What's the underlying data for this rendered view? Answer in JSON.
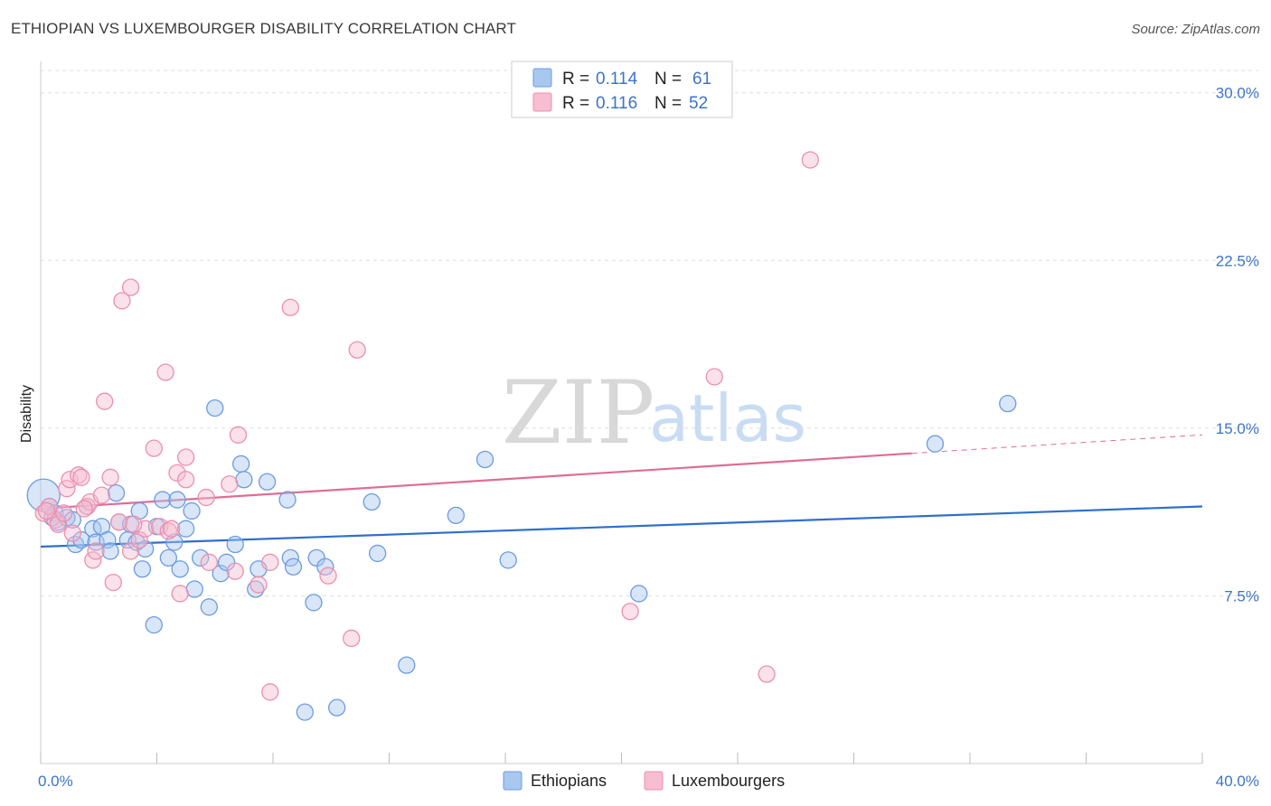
{
  "header": {
    "title": "ETHIOPIAN VS LUXEMBOURGER DISABILITY CORRELATION CHART",
    "source": "Source: ZipAtlas.com"
  },
  "watermark": {
    "zip": "ZIP",
    "atlas": "atlas"
  },
  "legend": {
    "rows": [
      {
        "r_label": "R = ",
        "r_value": "0.114",
        "n_label": "N = ",
        "n_value": "61",
        "color": "#a9c8f0",
        "stroke": "#6d9be0"
      },
      {
        "r_label": "R = ",
        "r_value": "0.116",
        "n_label": "N = ",
        "n_value": "52",
        "color": "#f7bdd0",
        "stroke": "#ec8fae"
      }
    ]
  },
  "chart_data": {
    "type": "scatter",
    "title": "ETHIOPIAN VS LUXEMBOURGER DISABILITY CORRELATION CHART",
    "xlabel": "",
    "ylabel": "Disability",
    "xlim": [
      0,
      40
    ],
    "ylim": [
      0,
      31
    ],
    "x_tick_labels": [
      "0.0%",
      "40.0%"
    ],
    "y_ticks": [
      7.5,
      15.0,
      22.5,
      30.0
    ],
    "y_tick_labels": [
      "7.5%",
      "15.0%",
      "22.5%",
      "30.0%"
    ],
    "grid": true,
    "series": [
      {
        "name": "Ethiopians",
        "color": "#6d9be0",
        "fill": "#a9c8f0",
        "trend_color": "#2e6fcc",
        "trend": {
          "x0": 0,
          "y0": 9.7,
          "x1": 40,
          "y1": 11.5,
          "solid_to": 40
        },
        "points": [
          [
            0.1,
            12.0
          ],
          [
            0.3,
            11.5
          ],
          [
            0.5,
            11.2
          ],
          [
            0.6,
            10.8
          ],
          [
            0.9,
            11.0
          ],
          [
            1.1,
            10.9
          ],
          [
            1.2,
            9.8
          ],
          [
            1.4,
            10.0
          ],
          [
            1.6,
            11.5
          ],
          [
            1.8,
            10.5
          ],
          [
            1.9,
            9.9
          ],
          [
            2.1,
            10.6
          ],
          [
            2.3,
            10.0
          ],
          [
            2.4,
            9.5
          ],
          [
            2.6,
            12.1
          ],
          [
            2.7,
            10.8
          ],
          [
            3.0,
            10.0
          ],
          [
            3.1,
            10.7
          ],
          [
            3.3,
            9.9
          ],
          [
            3.4,
            11.3
          ],
          [
            3.5,
            8.7
          ],
          [
            3.6,
            9.6
          ],
          [
            3.9,
            6.2
          ],
          [
            4.0,
            10.6
          ],
          [
            4.2,
            11.8
          ],
          [
            4.4,
            9.2
          ],
          [
            4.6,
            9.9
          ],
          [
            4.7,
            11.8
          ],
          [
            4.8,
            8.7
          ],
          [
            5.0,
            10.5
          ],
          [
            5.2,
            11.3
          ],
          [
            5.3,
            7.8
          ],
          [
            5.5,
            9.2
          ],
          [
            5.8,
            7.0
          ],
          [
            6.0,
            15.9
          ],
          [
            6.2,
            8.5
          ],
          [
            6.4,
            9.0
          ],
          [
            6.7,
            9.8
          ],
          [
            6.9,
            13.4
          ],
          [
            7.0,
            12.7
          ],
          [
            7.4,
            7.8
          ],
          [
            7.5,
            8.7
          ],
          [
            7.8,
            12.6
          ],
          [
            8.5,
            11.8
          ],
          [
            8.6,
            9.2
          ],
          [
            8.7,
            8.8
          ],
          [
            9.1,
            2.3
          ],
          [
            9.4,
            7.2
          ],
          [
            9.5,
            9.2
          ],
          [
            9.8,
            8.8
          ],
          [
            10.2,
            2.5
          ],
          [
            11.4,
            11.7
          ],
          [
            11.6,
            9.4
          ],
          [
            12.6,
            4.4
          ],
          [
            14.3,
            11.1
          ],
          [
            15.3,
            13.6
          ],
          [
            16.1,
            9.1
          ],
          [
            20.6,
            7.6
          ],
          [
            30.8,
            14.3
          ],
          [
            33.3,
            16.1
          ],
          [
            0.4,
            11.0
          ]
        ]
      },
      {
        "name": "Luxembourgers",
        "color": "#ec8fae",
        "fill": "#f7bdd0",
        "trend_color": "#e06c96",
        "trend": {
          "x0": 0,
          "y0": 11.4,
          "x1": 40,
          "y1": 14.7,
          "solid_to": 30.0
        },
        "points": [
          [
            0.1,
            11.2
          ],
          [
            0.3,
            11.5
          ],
          [
            0.5,
            10.9
          ],
          [
            0.6,
            10.7
          ],
          [
            0.8,
            11.2
          ],
          [
            0.9,
            12.3
          ],
          [
            1.0,
            12.7
          ],
          [
            1.1,
            10.3
          ],
          [
            1.3,
            12.9
          ],
          [
            1.4,
            12.8
          ],
          [
            1.6,
            11.5
          ],
          [
            1.7,
            11.7
          ],
          [
            1.8,
            9.1
          ],
          [
            1.9,
            9.5
          ],
          [
            2.1,
            12.0
          ],
          [
            2.2,
            16.2
          ],
          [
            2.4,
            12.8
          ],
          [
            2.5,
            8.1
          ],
          [
            2.7,
            10.8
          ],
          [
            2.8,
            20.7
          ],
          [
            3.1,
            9.5
          ],
          [
            3.1,
            21.3
          ],
          [
            3.4,
            10.0
          ],
          [
            3.6,
            10.5
          ],
          [
            3.9,
            14.1
          ],
          [
            4.1,
            10.6
          ],
          [
            4.3,
            17.5
          ],
          [
            4.4,
            10.4
          ],
          [
            4.7,
            13.0
          ],
          [
            4.8,
            7.6
          ],
          [
            5.0,
            12.7
          ],
          [
            5.0,
            13.7
          ],
          [
            5.7,
            11.9
          ],
          [
            5.8,
            9.0
          ],
          [
            6.5,
            12.5
          ],
          [
            6.7,
            8.6
          ],
          [
            6.8,
            14.7
          ],
          [
            7.5,
            8.0
          ],
          [
            7.9,
            9.0
          ],
          [
            8.6,
            20.4
          ],
          [
            9.9,
            8.4
          ],
          [
            10.9,
            18.5
          ],
          [
            10.7,
            5.6
          ],
          [
            7.9,
            3.2
          ],
          [
            20.3,
            6.8
          ],
          [
            23.2,
            17.3
          ],
          [
            25.0,
            4.0
          ],
          [
            26.5,
            27.0
          ],
          [
            4.5,
            10.5
          ],
          [
            3.2,
            10.7
          ],
          [
            0.2,
            11.3
          ],
          [
            1.5,
            11.4
          ]
        ]
      }
    ]
  },
  "bottom_legend": [
    {
      "label": "Ethiopians",
      "color": "#a9c8f0",
      "stroke": "#6d9be0"
    },
    {
      "label": "Luxembourgers",
      "color": "#f7bdd0",
      "stroke": "#ec8fae"
    }
  ]
}
